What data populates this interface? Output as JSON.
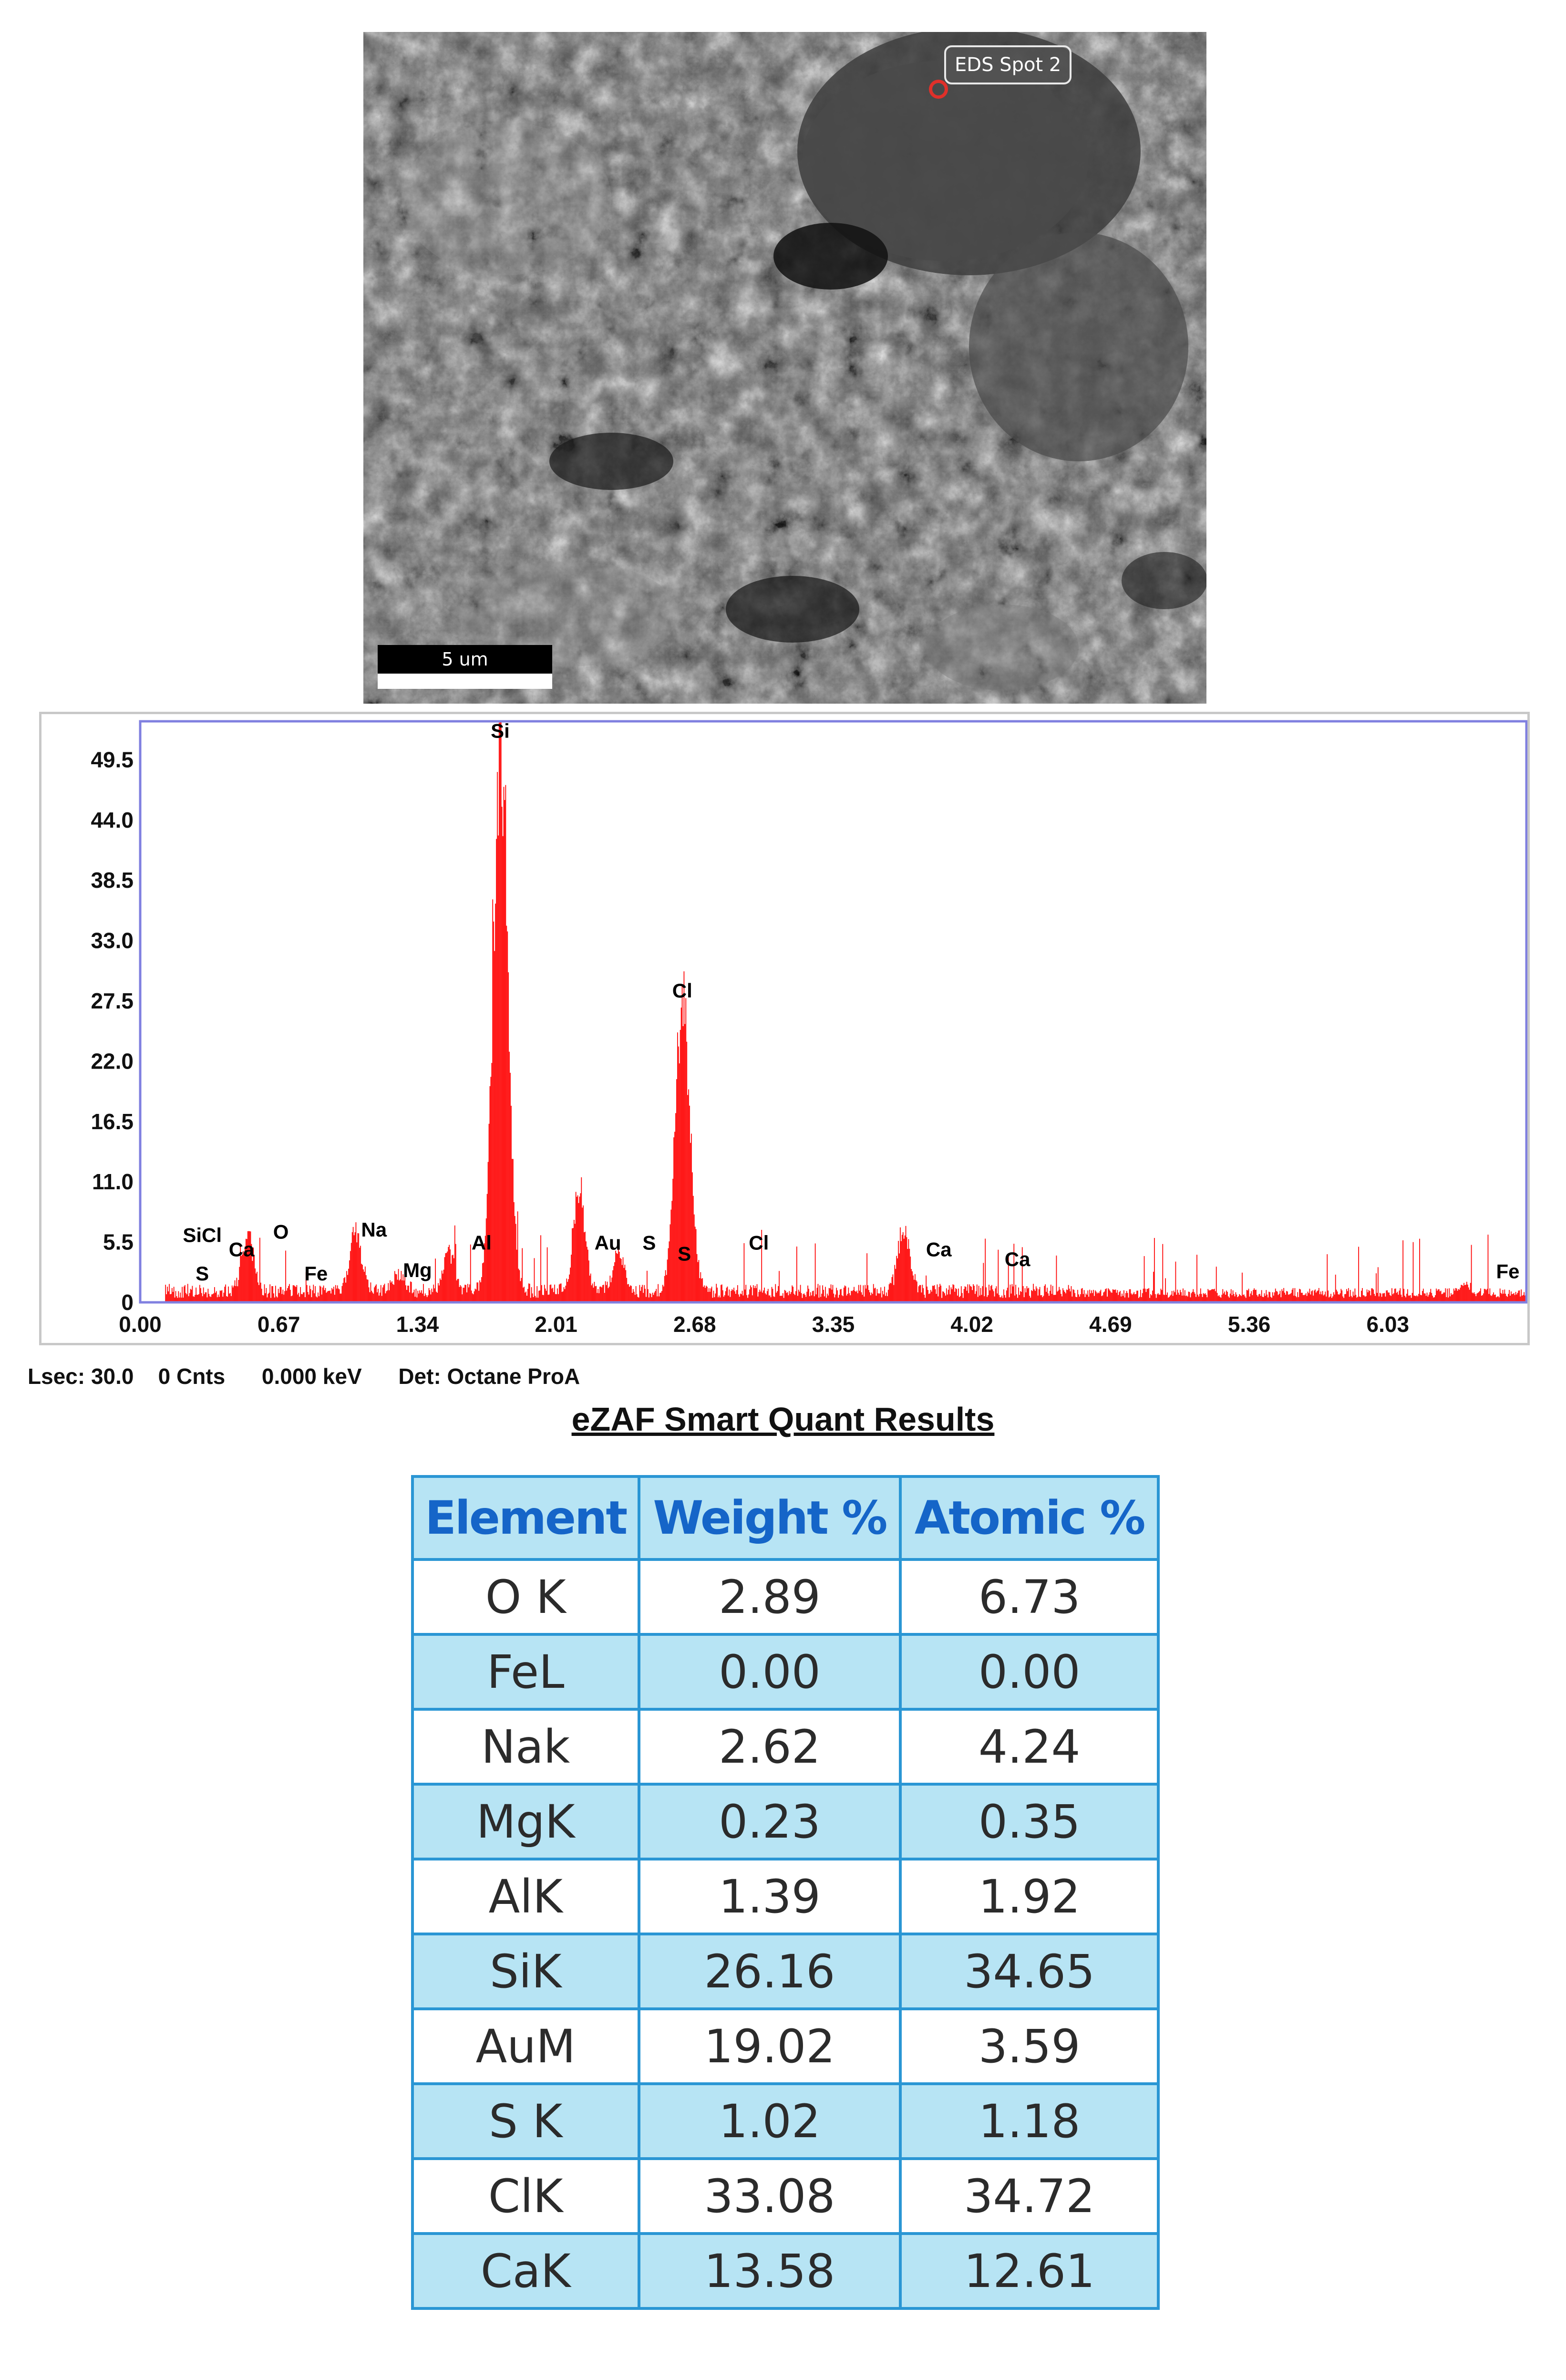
{
  "sem_image": {
    "eds_label": "EDS Spot 2",
    "scale_label": "5 um"
  },
  "chart_data": {
    "type": "bar",
    "xlabel": "",
    "ylabel": "",
    "x_ticks": [
      "0.00",
      "0.67",
      "1.34",
      "2.01",
      "2.68",
      "3.35",
      "4.02",
      "4.69",
      "5.36",
      "6.03"
    ],
    "y_ticks": [
      "0",
      "5.5",
      "11.0",
      "16.5",
      "22.0",
      "27.5",
      "33.0",
      "38.5",
      "44.0",
      "49.5"
    ],
    "xlim": [
      0,
      6.7
    ],
    "ylim": [
      0,
      53
    ],
    "color": "#ff0000",
    "frame_color": "#8080e0",
    "peaks": [
      {
        "label": "O",
        "x": 0.52,
        "y": 5.0
      },
      {
        "label": "Na",
        "x": 1.04,
        "y": 5.2
      },
      {
        "label": "Mg",
        "x": 1.25,
        "y": 1.5
      },
      {
        "label": "Al",
        "x": 1.49,
        "y": 3.5
      },
      {
        "label": "Si",
        "x": 1.74,
        "y": 50.5
      },
      {
        "label": "Au",
        "x": 2.12,
        "y": 9.5
      },
      {
        "label": "S",
        "x": 2.31,
        "y": 3.5
      },
      {
        "label": "Cl",
        "x": 2.62,
        "y": 26.5
      },
      {
        "label": "Ca",
        "x": 3.69,
        "y": 6.0
      },
      {
        "label": "Fe",
        "x": 6.4,
        "y": 1.0
      }
    ],
    "annotations": [
      {
        "text": "Si",
        "x": 1.74,
        "y": 51.5
      },
      {
        "text": "Cl",
        "x": 2.62,
        "y": 27.8
      },
      {
        "text": "SiCl",
        "x": 0.3,
        "y": 5.5
      },
      {
        "text": "S",
        "x": 0.3,
        "y": 2.0
      },
      {
        "text": "Ca",
        "x": 0.49,
        "y": 4.2
      },
      {
        "text": "O",
        "x": 0.68,
        "y": 5.8
      },
      {
        "text": "Fe",
        "x": 0.85,
        "y": 2.0
      },
      {
        "text": "Na",
        "x": 1.13,
        "y": 6.0
      },
      {
        "text": "Mg",
        "x": 1.34,
        "y": 2.3
      },
      {
        "text": "Al",
        "x": 1.65,
        "y": 4.8
      },
      {
        "text": "Au",
        "x": 2.26,
        "y": 4.8
      },
      {
        "text": "S",
        "x": 2.46,
        "y": 4.8
      },
      {
        "text": "S",
        "x": 2.63,
        "y": 3.8
      },
      {
        "text": "Cl",
        "x": 2.99,
        "y": 4.8
      },
      {
        "text": "Ca",
        "x": 3.86,
        "y": 4.2
      },
      {
        "text": "Ca",
        "x": 4.24,
        "y": 3.3
      },
      {
        "text": "Fe",
        "x": 6.61,
        "y": 2.2
      }
    ]
  },
  "status": {
    "lsec": "Lsec: 30.0",
    "cnts": "0 Cnts",
    "kev": "0.000 keV",
    "det": "Det: Octane ProA"
  },
  "results": {
    "title": "eZAF Smart Quant Results",
    "headers": [
      "Element",
      "Weight %",
      "Atomic %"
    ],
    "rows": [
      [
        "O K",
        "2.89",
        "6.73"
      ],
      [
        "FeL",
        "0.00",
        "0.00"
      ],
      [
        "Nak",
        "2.62",
        "4.24"
      ],
      [
        "MgK",
        "0.23",
        "0.35"
      ],
      [
        "AlK",
        "1.39",
        "1.92"
      ],
      [
        "SiK",
        "26.16",
        "34.65"
      ],
      [
        "AuM",
        "19.02",
        "3.59"
      ],
      [
        "S K",
        "1.02",
        "1.18"
      ],
      [
        "ClK",
        "33.08",
        "34.72"
      ],
      [
        "CaK",
        "13.58",
        "12.61"
      ]
    ]
  }
}
